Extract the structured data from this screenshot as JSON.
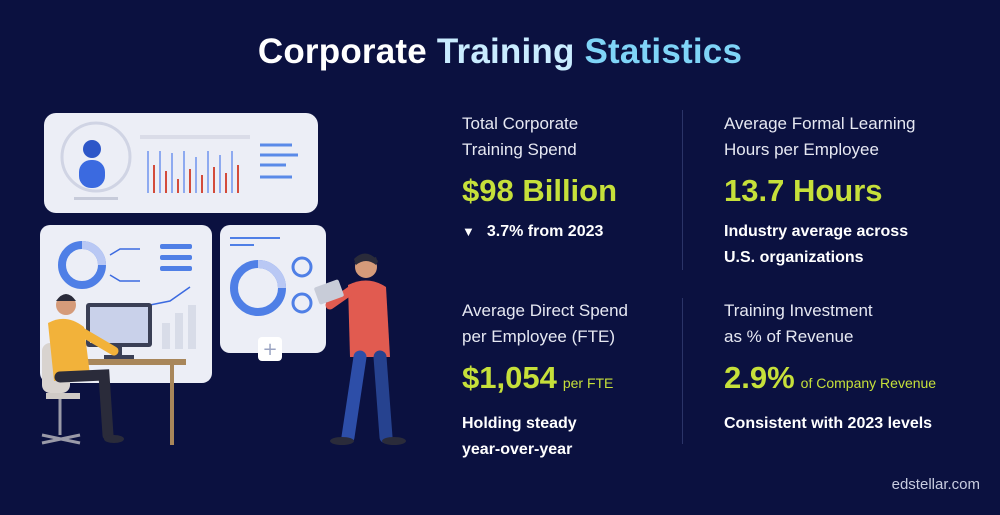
{
  "title": {
    "part1": "Corporate",
    "part2": "Training",
    "part3": "Statistics"
  },
  "stats": [
    {
      "label_line1": "Total Corporate",
      "label_line2": "Training Spend",
      "value": "$98 Billion",
      "unit": "",
      "note_icon": "▼",
      "note_line1": "3.7% from 2023",
      "note_line2": ""
    },
    {
      "label_line1": "Average Formal Learning",
      "label_line2": "Hours per Employee",
      "value": "13.7 Hours",
      "unit": "",
      "note_icon": "",
      "note_line1": "Industry average across",
      "note_line2": "U.S. organizations"
    },
    {
      "label_line1": "Average Direct Spend",
      "label_line2": "per Employee (FTE)",
      "value": "$1,054",
      "unit": "per FTE",
      "note_icon": "",
      "note_line1": "Holding steady",
      "note_line2": "year-over-year"
    },
    {
      "label_line1": "Training Investment",
      "label_line2": "as % of Revenue",
      "value": "2.9%",
      "unit": "of Company Revenue",
      "note_icon": "",
      "note_line1": "Consistent with 2023 levels",
      "note_line2": ""
    }
  ],
  "footer": {
    "site": "edstellar.com"
  },
  "colors": {
    "background": "#0b1140",
    "accent": "#c6e03a",
    "title_highlight": "#7fd4f7"
  }
}
